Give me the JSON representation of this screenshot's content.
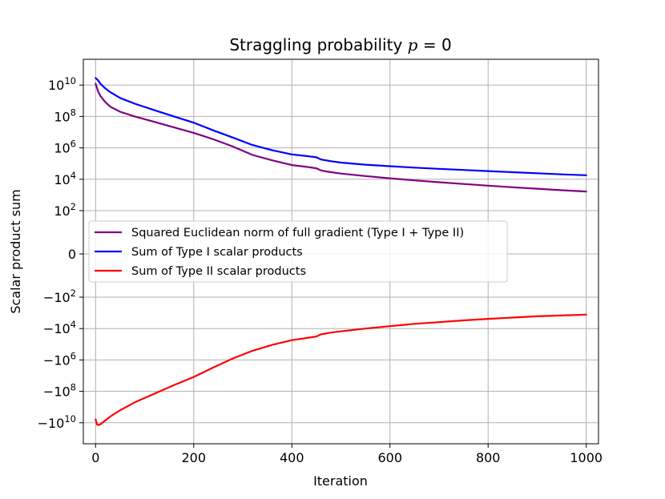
{
  "chart_data": {
    "type": "line",
    "title_prefix": "Straggling probability ",
    "title_var": "p",
    "title_suffix": " = 0",
    "xlabel": "Iteration",
    "ylabel": "Scalar product sum",
    "xlim": [
      -25,
      1025
    ],
    "x_ticks": [
      {
        "value": 0,
        "label": "0"
      },
      {
        "value": 200,
        "label": "200"
      },
      {
        "value": 400,
        "label": "400"
      },
      {
        "value": 600,
        "label": "600"
      },
      {
        "value": 800,
        "label": "800"
      },
      {
        "value": 1000,
        "label": "1000"
      }
    ],
    "yscale": "symlog",
    "y_ticks": [
      {
        "value": 10000000000,
        "base": "10",
        "exp": "10",
        "sign": ""
      },
      {
        "value": 100000000,
        "base": "10",
        "exp": "8",
        "sign": ""
      },
      {
        "value": 1000000,
        "base": "10",
        "exp": "6",
        "sign": ""
      },
      {
        "value": 10000,
        "base": "10",
        "exp": "4",
        "sign": ""
      },
      {
        "value": 100,
        "base": "10",
        "exp": "2",
        "sign": ""
      },
      {
        "value": 0,
        "base": "0",
        "exp": "",
        "sign": ""
      },
      {
        "value": -100,
        "base": "10",
        "exp": "2",
        "sign": "−"
      },
      {
        "value": -10000,
        "base": "10",
        "exp": "4",
        "sign": "−"
      },
      {
        "value": -1000000,
        "base": "10",
        "exp": "6",
        "sign": "−"
      },
      {
        "value": -100000000,
        "base": "10",
        "exp": "8",
        "sign": "−"
      },
      {
        "value": -10000000000,
        "base": "10",
        "exp": "10",
        "sign": "−"
      }
    ],
    "grid": true,
    "legend_position": "center-left",
    "series": [
      {
        "name": "Squared Euclidean norm of full gradient (Type I + Type II)",
        "color": "#800080",
        "x": [
          0,
          5,
          10,
          20,
          30,
          50,
          80,
          120,
          160,
          200,
          240,
          280,
          320,
          360,
          400,
          430,
          450,
          460,
          480,
          500,
          550,
          600,
          650,
          700,
          750,
          800,
          850,
          900,
          950,
          1000
        ],
        "y": [
          12000000000,
          4000000000,
          2000000000,
          800000000,
          420000000,
          200000000,
          100000000,
          45000000,
          20000000,
          9000000,
          3500000,
          1200000,
          350000,
          160000,
          80000,
          62000,
          50000,
          36000,
          28000,
          23000,
          16000,
          11500,
          8500,
          6500,
          5000,
          3900,
          3100,
          2500,
          2000,
          1650
        ]
      },
      {
        "name": "Sum of Type I scalar products",
        "color": "#0000ff",
        "x": [
          0,
          5,
          10,
          20,
          30,
          50,
          80,
          120,
          160,
          200,
          240,
          280,
          320,
          360,
          400,
          430,
          450,
          460,
          480,
          500,
          550,
          600,
          650,
          700,
          750,
          800,
          850,
          900,
          950,
          1000
        ],
        "y": [
          28000000000,
          20000000000,
          12000000000,
          6000000000,
          3500000000,
          1500000000,
          650000000,
          250000000,
          100000000,
          40000000,
          13000000,
          4500000,
          1500000,
          700000,
          380000,
          300000,
          250000,
          180000,
          140000,
          115000,
          85000,
          68000,
          55000,
          46000,
          39000,
          33000,
          28000,
          24000,
          20500,
          18000
        ]
      },
      {
        "name": "Sum of Type II scalar products",
        "color": "#ff0000",
        "x": [
          0,
          3,
          5,
          10,
          20,
          30,
          50,
          80,
          120,
          160,
          200,
          240,
          280,
          320,
          360,
          400,
          430,
          450,
          460,
          480,
          500,
          550,
          600,
          650,
          700,
          750,
          800,
          850,
          900,
          1000
        ],
        "y": [
          -6000000000,
          -13000000000,
          -14000000000,
          -12500000000,
          -7000000000,
          -4000000000,
          -1600000000,
          -500000000,
          -140000000,
          -40000000,
          -12000000,
          -3000000,
          -800000,
          -260000,
          -110000,
          -55000,
          -40000,
          -32000,
          -23000,
          -18000,
          -15000,
          -10000,
          -7000,
          -5000,
          -3900,
          -3000,
          -2400,
          -2000,
          -1650,
          -1300
        ]
      }
    ]
  }
}
